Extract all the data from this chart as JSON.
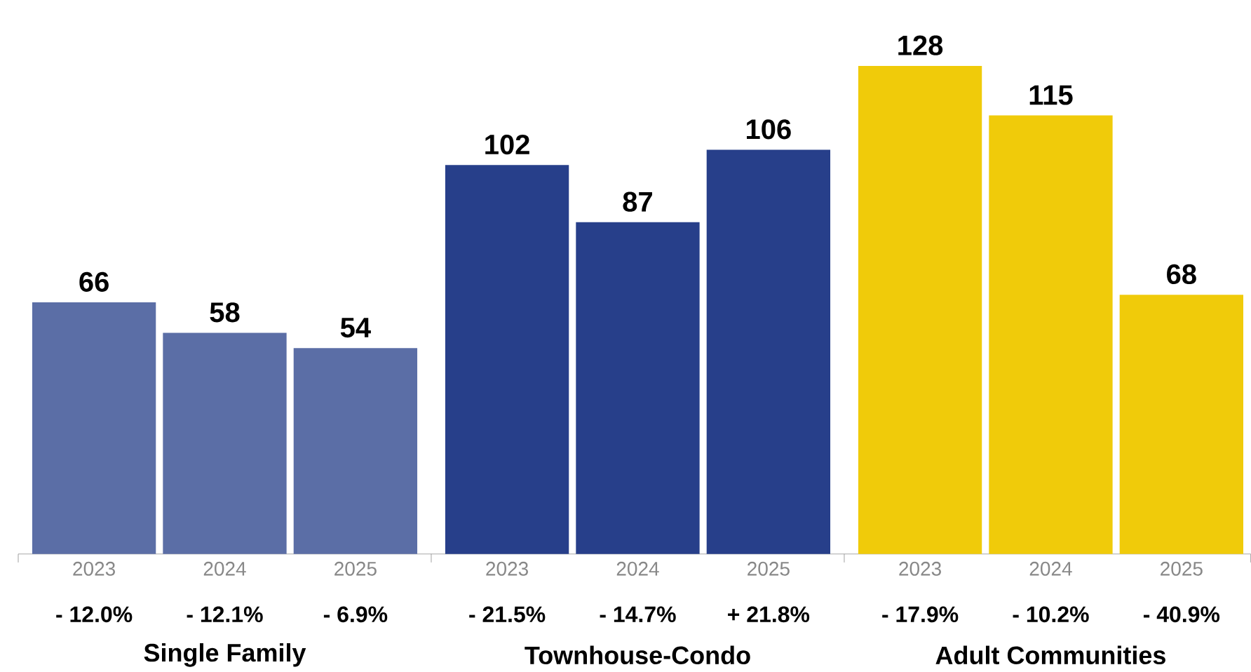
{
  "chart_data": {
    "type": "bar",
    "categories": [
      "2023",
      "2024",
      "2025",
      "2023",
      "2024",
      "2025",
      "2023",
      "2024",
      "2025"
    ],
    "values": [
      66,
      58,
      54,
      102,
      87,
      106,
      128,
      115,
      68
    ],
    "annotations": [
      "- 12.0%",
      "- 12.1%",
      "- 6.9%",
      "- 21.5%",
      "- 14.7%",
      "+ 21.8%",
      "- 17.9%",
      "- 10.2%",
      "- 40.9%",
      "Single Family",
      "Townhouse-Condo",
      "Adult Communities"
    ],
    "colors": [
      "#5b6ea6",
      "#5b6ea6",
      "#5b6ea6",
      "#273f8a",
      "#273f8a",
      "#273f8a",
      "#f0cb0a",
      "#f0cb0a",
      "#f0cb0a"
    ],
    "value_labels": [
      "66",
      "58",
      "54",
      "102",
      "87",
      "106",
      "128",
      "115",
      "68"
    ]
  }
}
